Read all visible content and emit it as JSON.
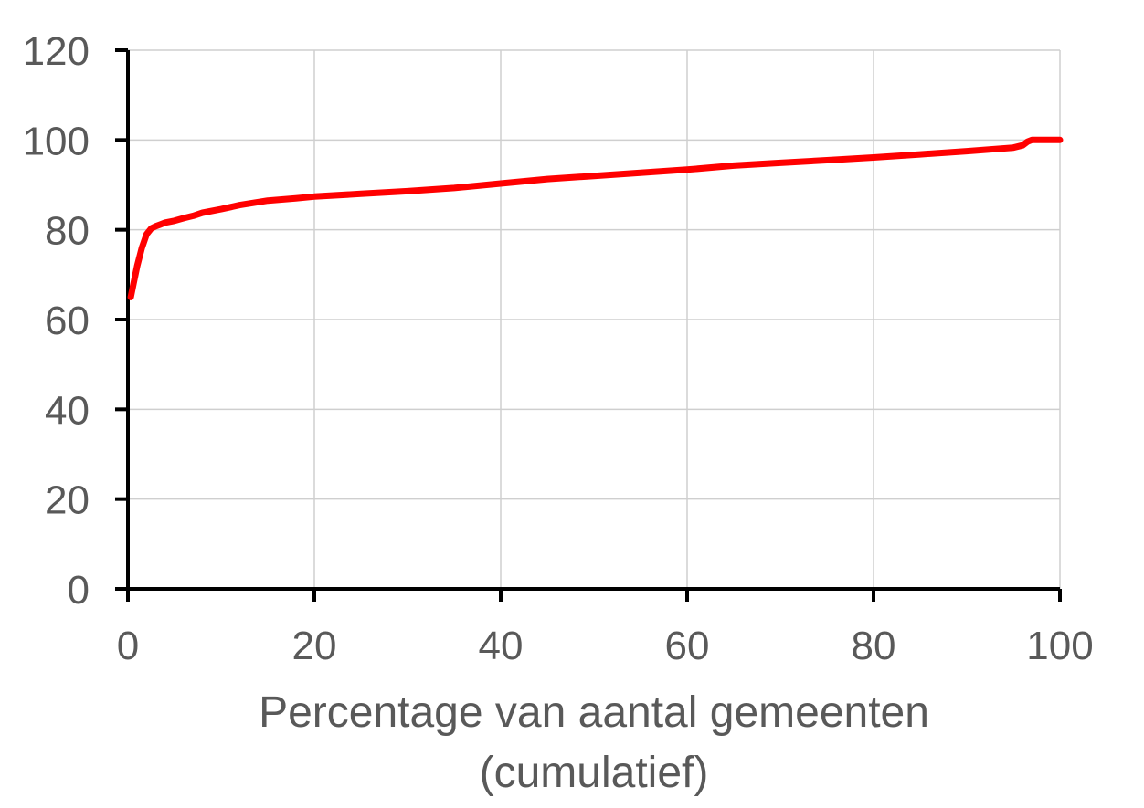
{
  "chart_data": {
    "type": "line",
    "xlabel": [
      "Percentage van aantal gemeenten",
      "(cumulatief)"
    ],
    "ylabel": "",
    "xlim": [
      0,
      100
    ],
    "ylim": [
      0,
      120
    ],
    "x_ticks": [
      "0",
      "20",
      "40",
      "60",
      "80",
      "100"
    ],
    "y_ticks": [
      "0",
      "20",
      "40",
      "60",
      "80",
      "100",
      "120"
    ],
    "grid": true,
    "legend": "none",
    "series": [
      {
        "color": "#ff0000",
        "x": [
          0.3,
          0.6,
          1,
          1.5,
          2,
          2.5,
          3,
          3.5,
          4,
          5,
          6,
          7,
          8,
          10,
          12,
          15,
          18,
          20,
          25,
          30,
          35,
          40,
          45,
          50,
          55,
          60,
          65,
          70,
          75,
          80,
          85,
          90,
          95,
          96,
          96.5,
          97,
          98,
          100
        ],
        "y": [
          65,
          68,
          72,
          76,
          79,
          80.3,
          80.8,
          81.2,
          81.6,
          82.0,
          82.6,
          83.1,
          83.8,
          84.6,
          85.5,
          86.5,
          87.0,
          87.4,
          88.0,
          88.6,
          89.3,
          90.3,
          91.3,
          92.0,
          92.7,
          93.4,
          94.3,
          94.9,
          95.5,
          96.1,
          96.8,
          97.5,
          98.3,
          98.8,
          99.6,
          100,
          100,
          100
        ]
      }
    ]
  }
}
